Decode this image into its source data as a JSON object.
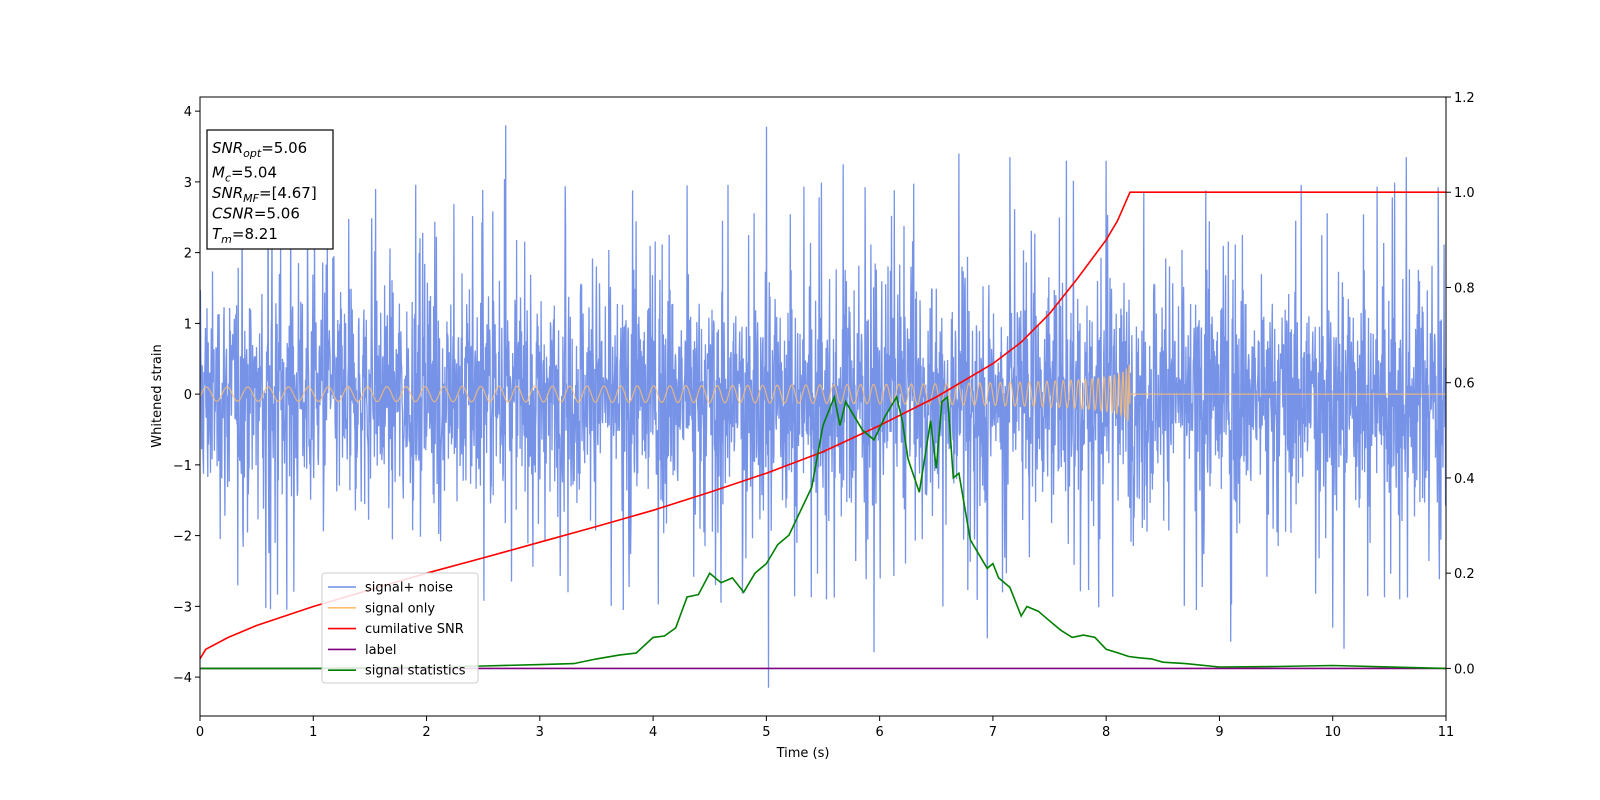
{
  "chart_data": {
    "type": "line",
    "title": "",
    "xlabel": "Time (s)",
    "ylabel": "Whitened strain",
    "xlim": [
      0,
      11
    ],
    "ylim": [
      -4.55,
      4.2
    ],
    "y2lim": [
      -0.1,
      1.2
    ],
    "x_ticks": [
      "0",
      "1",
      "2",
      "3",
      "4",
      "5",
      "6",
      "7",
      "8",
      "9",
      "10",
      "11"
    ],
    "y_ticks": [
      "−4",
      "−3",
      "−2",
      "−1",
      "0",
      "1",
      "2",
      "3",
      "4"
    ],
    "y2_ticks": [
      "0.0",
      "0.2",
      "0.4",
      "0.6",
      "0.8",
      "1.0",
      "1.2"
    ],
    "grid": false,
    "legend_position": "lower-left",
    "legend": [
      {
        "label": "signal+ noise",
        "color": "#6f8de6"
      },
      {
        "label": "signal only",
        "color": "#ffbe6f"
      },
      {
        "label": "cumilative SNR",
        "color": "#ff0000"
      },
      {
        "label": "label",
        "color": "#800080"
      },
      {
        "label": "signal statistics",
        "color": "#008000"
      }
    ],
    "stats_box": [
      {
        "name": "SNR",
        "sub": "opt",
        "value": "=5.06"
      },
      {
        "name": "M",
        "sub": "c",
        "value": "=5.04"
      },
      {
        "name": "SNR",
        "sub": "MF",
        "value": "=[4.67]"
      },
      {
        "name": "CSNR",
        "sub": "",
        "value": "=5.06"
      },
      {
        "name": "T",
        "sub": "m",
        "value": "=8.21"
      }
    ],
    "series": [
      {
        "name": "signal+ noise",
        "axis": "left",
        "color": "#6f8de6",
        "envelope": {
          "typical_amplitude": 1.8,
          "max": 3.8,
          "min": -4.15
        },
        "spikes": [
          [
            0.6,
            3.7
          ],
          [
            1.55,
            2.9
          ],
          [
            2.7,
            3.8
          ],
          [
            2.75,
            -2.65
          ],
          [
            3.25,
            -2.8
          ],
          [
            4.3,
            2.95
          ],
          [
            4.55,
            -2.7
          ],
          [
            4.6,
            -2.95
          ],
          [
            5.0,
            3.78
          ],
          [
            5.02,
            -4.15
          ],
          [
            5.68,
            3.25
          ],
          [
            5.95,
            -3.65
          ],
          [
            6.7,
            3.4
          ],
          [
            6.95,
            -3.45
          ],
          [
            7.15,
            3.35
          ],
          [
            7.65,
            3.3
          ],
          [
            8.0,
            3.3
          ],
          [
            9.1,
            -3.5
          ],
          [
            10.0,
            -3.3
          ],
          [
            10.1,
            -3.6
          ],
          [
            10.65,
            3.35
          ]
        ]
      },
      {
        "name": "signal only",
        "axis": "left",
        "color": "#ffbe6f",
        "merger_time": 8.21,
        "peak_amplitude": 0.45
      },
      {
        "name": "cumilative SNR",
        "axis": "right",
        "color": "#ff0000",
        "x": [
          0,
          0.05,
          0.25,
          0.5,
          1,
          1.5,
          2,
          2.5,
          3,
          3.5,
          4,
          4.5,
          5,
          5.5,
          6,
          6.5,
          7,
          7.25,
          7.5,
          7.75,
          8,
          8.1,
          8.21,
          9,
          10,
          11
        ],
        "y": [
          0.02,
          0.04,
          0.065,
          0.09,
          0.13,
          0.165,
          0.2,
          0.232,
          0.265,
          0.298,
          0.332,
          0.37,
          0.41,
          0.455,
          0.51,
          0.57,
          0.64,
          0.685,
          0.745,
          0.82,
          0.9,
          0.94,
          1.0,
          1.0,
          1.0,
          1.0
        ]
      },
      {
        "name": "label",
        "axis": "right",
        "color": "#800080",
        "x": [
          0,
          11
        ],
        "y": [
          0,
          0
        ]
      },
      {
        "name": "signal statistics",
        "axis": "right",
        "color": "#008000",
        "x": [
          0,
          1,
          2,
          2.5,
          3,
          3.3,
          3.5,
          3.7,
          3.85,
          4.0,
          4.1,
          4.2,
          4.3,
          4.4,
          4.5,
          4.6,
          4.7,
          4.8,
          4.9,
          5.0,
          5.1,
          5.2,
          5.3,
          5.4,
          5.5,
          5.6,
          5.65,
          5.7,
          5.75,
          5.85,
          5.95,
          6.05,
          6.15,
          6.2,
          6.25,
          6.35,
          6.45,
          6.5,
          6.55,
          6.6,
          6.65,
          6.7,
          6.8,
          6.85,
          6.95,
          7.0,
          7.05,
          7.15,
          7.25,
          7.3,
          7.4,
          7.5,
          7.6,
          7.7,
          7.8,
          7.9,
          8.0,
          8.1,
          8.2,
          8.3,
          8.4,
          8.5,
          8.7,
          9.0,
          9.5,
          10.0,
          11.0
        ],
        "y": [
          0,
          0.0,
          0.003,
          0.005,
          0.008,
          0.01,
          0.02,
          0.028,
          0.032,
          0.065,
          0.068,
          0.085,
          0.15,
          0.155,
          0.2,
          0.18,
          0.19,
          0.16,
          0.2,
          0.22,
          0.26,
          0.28,
          0.33,
          0.38,
          0.51,
          0.57,
          0.51,
          0.56,
          0.54,
          0.5,
          0.48,
          0.53,
          0.57,
          0.52,
          0.44,
          0.37,
          0.52,
          0.42,
          0.56,
          0.57,
          0.4,
          0.41,
          0.27,
          0.25,
          0.21,
          0.22,
          0.19,
          0.17,
          0.11,
          0.13,
          0.12,
          0.1,
          0.08,
          0.065,
          0.07,
          0.065,
          0.04,
          0.033,
          0.025,
          0.022,
          0.02,
          0.013,
          0.01,
          0.003,
          0.004,
          0.006,
          0.0
        ]
      }
    ]
  }
}
